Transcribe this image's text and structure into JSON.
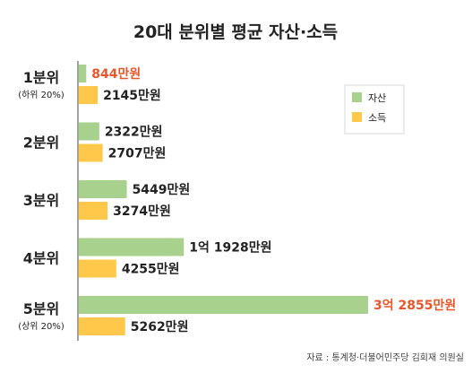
{
  "chart_data": {
    "type": "bar",
    "orientation": "horizontal",
    "title": "20대 분위별 평균 자산·소득",
    "categories": [
      "1분위",
      "2분위",
      "3분위",
      "4분위",
      "5분위"
    ],
    "category_sublabels": [
      "(하위 20%)",
      "",
      "",
      "",
      "(상위 20%)"
    ],
    "series": [
      {
        "name": "자산",
        "color": "#a9d18e",
        "values": [
          844,
          2322,
          5449,
          11928,
          32855
        ],
        "labels": [
          "844만원",
          "2322만원",
          "5449만원",
          "1억 1928만원",
          "3억 2855만원"
        ]
      },
      {
        "name": "소득",
        "color": "#ffc84a",
        "values": [
          2145,
          2707,
          3274,
          4255,
          5262
        ],
        "labels": [
          "2145만원",
          "2707만원",
          "3274만원",
          "4255만원",
          "5262만원"
        ]
      }
    ],
    "highlighted_labels": [
      {
        "series": 0,
        "index": 0
      },
      {
        "series": 0,
        "index": 4
      }
    ],
    "highlight_color": "#e8562a",
    "unit": "만원",
    "legend": {
      "position": "top-right",
      "entries": [
        "자산",
        "소득"
      ]
    },
    "grid": false,
    "source": "자료 : 통계청·더불어민주당 김회재 의원실"
  }
}
